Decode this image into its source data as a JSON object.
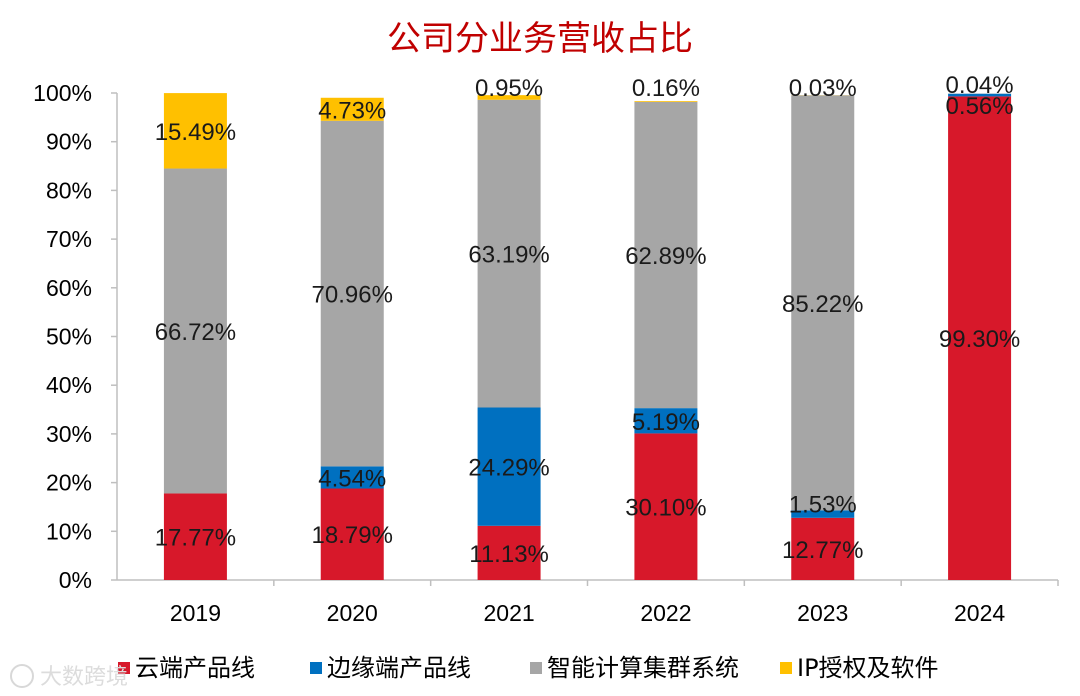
{
  "chart_data": {
    "type": "bar",
    "stacked": true,
    "title": "公司分业务营收占比",
    "categories": [
      "2019",
      "2020",
      "2021",
      "2022",
      "2023",
      "2024"
    ],
    "ylim": [
      0,
      100
    ],
    "yticks": [
      "0%",
      "10%",
      "20%",
      "30%",
      "40%",
      "50%",
      "60%",
      "70%",
      "80%",
      "90%",
      "100%"
    ],
    "series": [
      {
        "name": "云端产品线",
        "color": "#d7182a",
        "values": [
          17.77,
          18.79,
          11.13,
          30.1,
          12.77,
          99.3
        ],
        "labels": [
          "17.77%",
          "18.79%",
          "11.13%",
          "30.10%",
          "12.77%",
          "99.30%"
        ]
      },
      {
        "name": "边缘端产品线",
        "color": "#0070c0",
        "values": [
          0,
          4.54,
          24.29,
          5.19,
          1.53,
          0.56
        ],
        "labels": [
          "",
          "4.54%",
          "24.29%",
          "5.19%",
          "1.53%",
          "0.56%"
        ]
      },
      {
        "name": "智能计算集群系统",
        "color": "#a6a6a6",
        "values": [
          66.72,
          70.96,
          63.19,
          62.89,
          85.22,
          0.04
        ],
        "labels": [
          "66.72%",
          "70.96%",
          "63.19%",
          "62.89%",
          "85.22%",
          "0.04%"
        ]
      },
      {
        "name": "IP授权及软件",
        "color": "#ffc000",
        "values": [
          15.49,
          4.73,
          0.95,
          0.16,
          0.03,
          0
        ],
        "labels": [
          "15.49%",
          "4.73%",
          "0.95%",
          "0.16%",
          "0.03%",
          ""
        ]
      }
    ],
    "grid": false,
    "legend_position": "bottom"
  },
  "watermark": "大数跨境"
}
